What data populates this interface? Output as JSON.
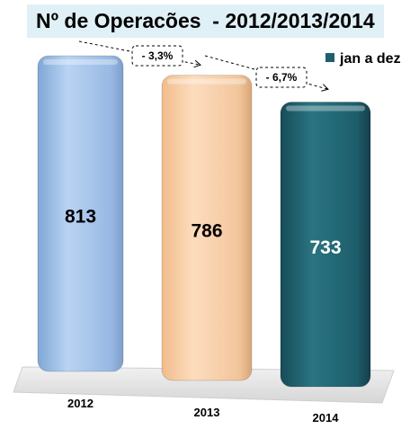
{
  "chart_data": {
    "type": "bar",
    "title": "Nº de Operacões  - 2012/2013/2014",
    "categories": [
      "2012",
      "2013",
      "2014"
    ],
    "values": [
      813,
      786,
      733
    ],
    "series": [
      {
        "name": "jan a dez",
        "values": [
          813,
          786,
          733
        ]
      }
    ],
    "annotations": [
      {
        "text": "- 3,3%",
        "from": "2012",
        "to": "2013"
      },
      {
        "text": "- 6,7%",
        "from": "2013",
        "to": "2014"
      }
    ],
    "colors": [
      "#a7c6ee",
      "#fad2ad",
      "#1f5f6e"
    ],
    "label_colors": [
      "#000000",
      "#000000",
      "#ffffff"
    ],
    "legend_color": "#1f5f6e",
    "ylim": [
      0,
      900
    ],
    "grid": false,
    "legend_position": "top-right",
    "style": "3d-cylinder"
  }
}
